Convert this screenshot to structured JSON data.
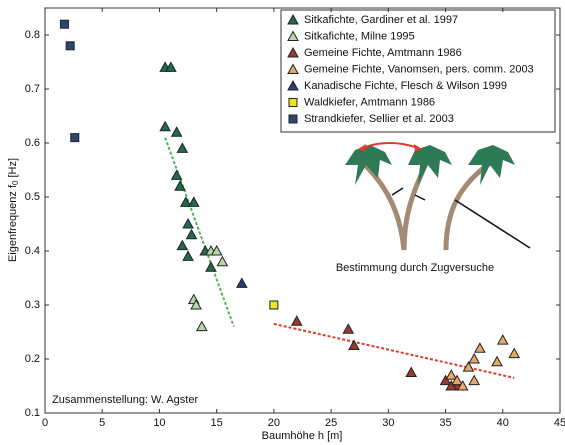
{
  "chart_data": {
    "type": "scatter",
    "xlabel": "Baumhöhe h [m]",
    "ylabel": "Eigenfrequenz f",
    "ylabel_sub": "0",
    "ylabel_unit": "[Hz]",
    "xlim": [
      0,
      45
    ],
    "ylim": [
      0.1,
      0.85
    ],
    "xticks": [
      0,
      5,
      10,
      15,
      20,
      25,
      30,
      35,
      40,
      45
    ],
    "yticks": [
      0.1,
      0.2,
      0.3,
      0.4,
      0.5,
      0.6,
      0.7,
      0.8
    ],
    "grid": false,
    "legend": "top-right",
    "annotations": [
      "Bestimmung durch Zugversuche",
      "Zusammenstellung: W. Agster"
    ],
    "series": [
      {
        "name": "Sitkafichte, Gardiner et al. 1997",
        "color": "#1f6b4c",
        "marker": "triangle",
        "x": [
          10.5,
          11,
          10.5,
          11.5,
          12,
          11.5,
          11.8,
          12.3,
          13,
          12.5,
          12.8,
          12,
          12.5,
          14,
          14.5
        ],
        "values": [
          0.74,
          0.74,
          0.63,
          0.62,
          0.59,
          0.54,
          0.52,
          0.49,
          0.49,
          0.45,
          0.43,
          0.41,
          0.39,
          0.4,
          0.37
        ]
      },
      {
        "name": "Sitkafichte, Milne 1995",
        "color": "#b7d9a8",
        "marker": "triangle",
        "x": [
          14.5,
          15,
          15.5,
          13,
          13.2,
          13.7
        ],
        "values": [
          0.4,
          0.4,
          0.38,
          0.31,
          0.3,
          0.26
        ]
      },
      {
        "name": "Gemeine Fichte, Amtmann 1986",
        "color": "#9a3b2e",
        "marker": "triangle",
        "x": [
          22,
          26.5,
          27,
          32,
          35,
          36,
          35.5
        ],
        "values": [
          0.27,
          0.255,
          0.225,
          0.175,
          0.16,
          0.15,
          0.15
        ]
      },
      {
        "name": "Gemeine Fichte, Vanomsen, pers. comm. 2003",
        "color": "#e5a866",
        "marker": "triangle",
        "x": [
          35.5,
          36,
          36.5,
          37,
          37.5,
          37.5,
          38,
          39.5,
          40,
          41
        ],
        "values": [
          0.17,
          0.16,
          0.15,
          0.185,
          0.2,
          0.16,
          0.22,
          0.195,
          0.235,
          0.21
        ]
      },
      {
        "name": "Kanadische Fichte, Flesch & Wilson 1999",
        "color": "#2b3a7c",
        "marker": "triangle",
        "x": [
          17.2
        ],
        "values": [
          0.34
        ]
      },
      {
        "name": "Waldkiefer, Amtmann 1986",
        "color": "#f2e02a",
        "marker": "square",
        "x": [
          20
        ],
        "values": [
          0.3
        ]
      },
      {
        "name": "Strandkiefer, Sellier et al. 2003",
        "color": "#2c4775",
        "marker": "square",
        "x": [
          1.7,
          2.2,
          2.6
        ],
        "values": [
          0.82,
          0.78,
          0.61
        ]
      }
    ],
    "trendlines": [
      {
        "color": "#4cb84c",
        "x": [
          10.5,
          16.5
        ],
        "values": [
          0.61,
          0.26
        ]
      },
      {
        "color": "#e03a2a",
        "x": [
          20,
          41
        ],
        "values": [
          0.265,
          0.165
        ]
      }
    ]
  }
}
